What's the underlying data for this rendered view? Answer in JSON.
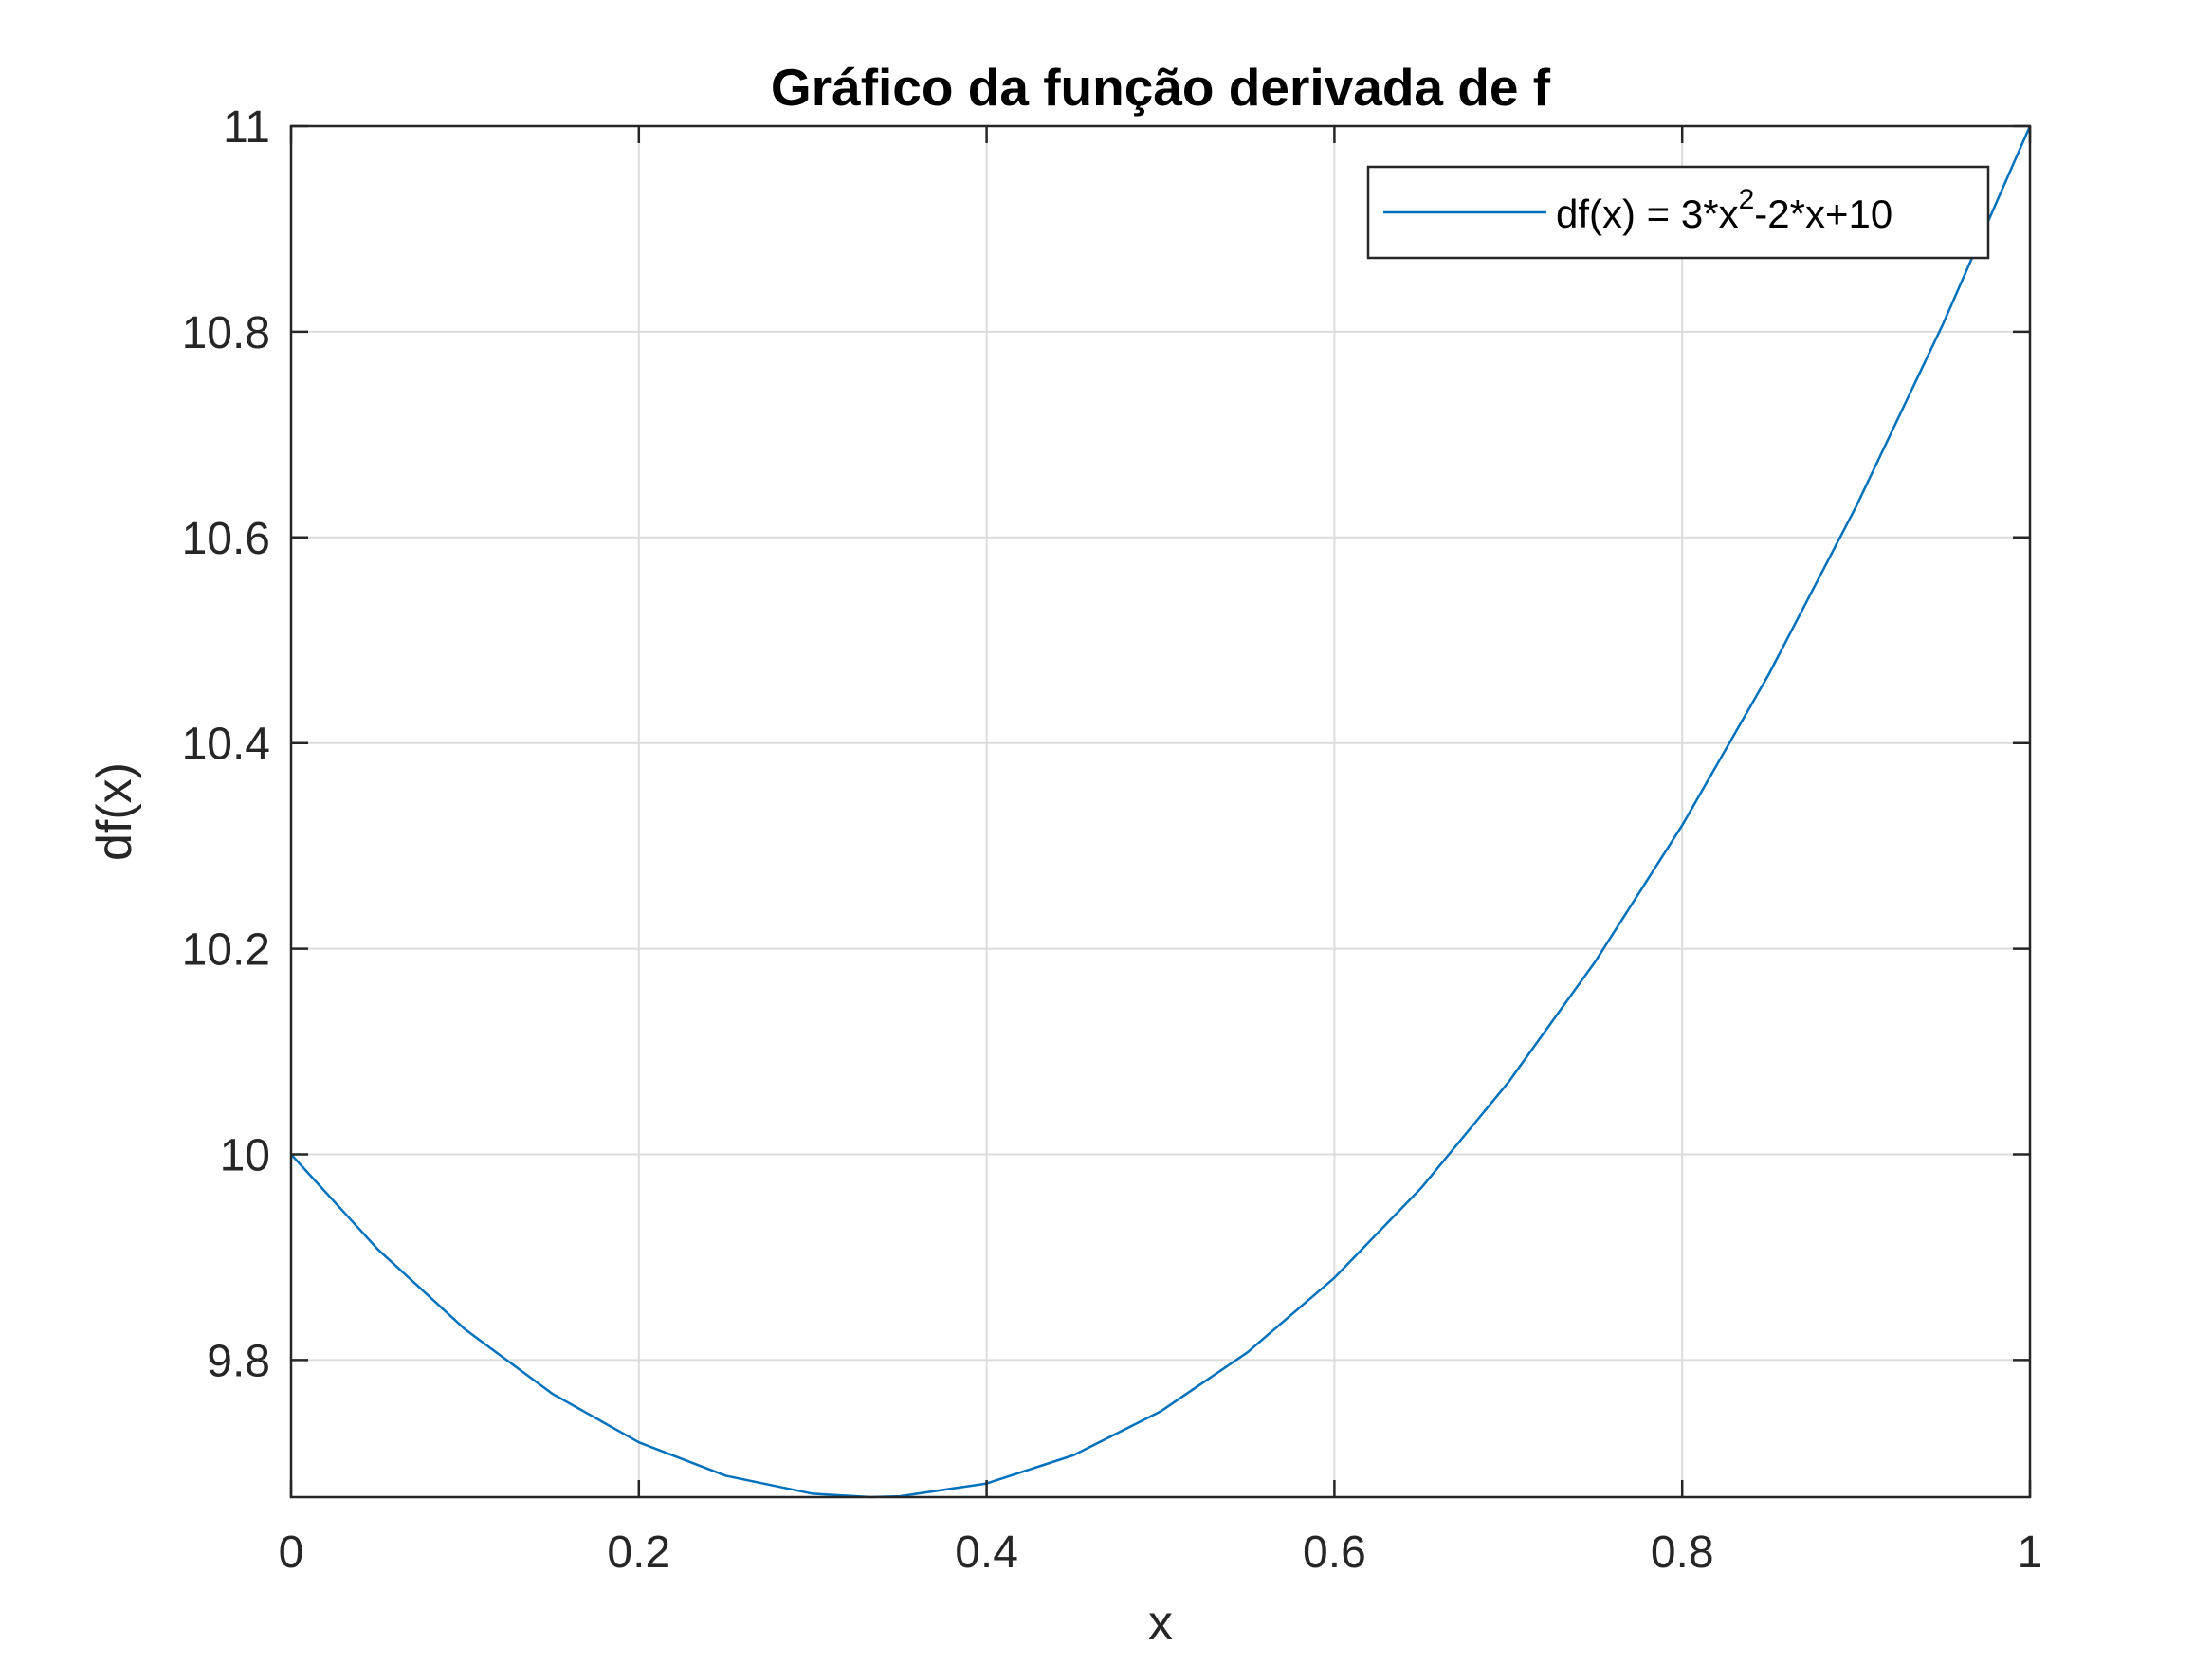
{
  "chart_data": {
    "type": "line",
    "title": "Gráfico da função derivada de f",
    "xlabel": "x",
    "ylabel": "df(x)",
    "xlim": [
      0,
      1
    ],
    "ylim": [
      9.6667,
      11
    ],
    "xticks": [
      0,
      0.2,
      0.4,
      0.6,
      0.8,
      1
    ],
    "xtick_labels": [
      "0",
      "0.2",
      "0.4",
      "0.6",
      "0.8",
      "1"
    ],
    "yticks": [
      9.8,
      10,
      10.2,
      10.4,
      10.6,
      10.8,
      11
    ],
    "ytick_labels": [
      "9.8",
      "10",
      "10.2",
      "10.4",
      "10.6",
      "10.8",
      "11"
    ],
    "grid": true,
    "legend_position": "top-right",
    "series": [
      {
        "name": "df(x) = 3*x^2-2*x+10",
        "legend_parts": {
          "base": "df(x) = 3*x",
          "sup": "2",
          "rest": "-2*x+10"
        },
        "color": "#0072BD",
        "x": [
          0,
          0.05,
          0.1,
          0.15,
          0.2,
          0.25,
          0.3,
          0.333,
          0.35,
          0.4,
          0.45,
          0.5,
          0.55,
          0.6,
          0.65,
          0.7,
          0.75,
          0.8,
          0.85,
          0.9,
          0.95,
          1
        ],
        "y": [
          10,
          9.9075,
          9.83,
          9.7675,
          9.72,
          9.6875,
          9.67,
          9.6667,
          9.6675,
          9.68,
          9.7075,
          9.75,
          9.8075,
          9.88,
          9.9675,
          10.07,
          10.1875,
          10.32,
          10.4675,
          10.63,
          10.8075,
          11
        ]
      }
    ]
  }
}
